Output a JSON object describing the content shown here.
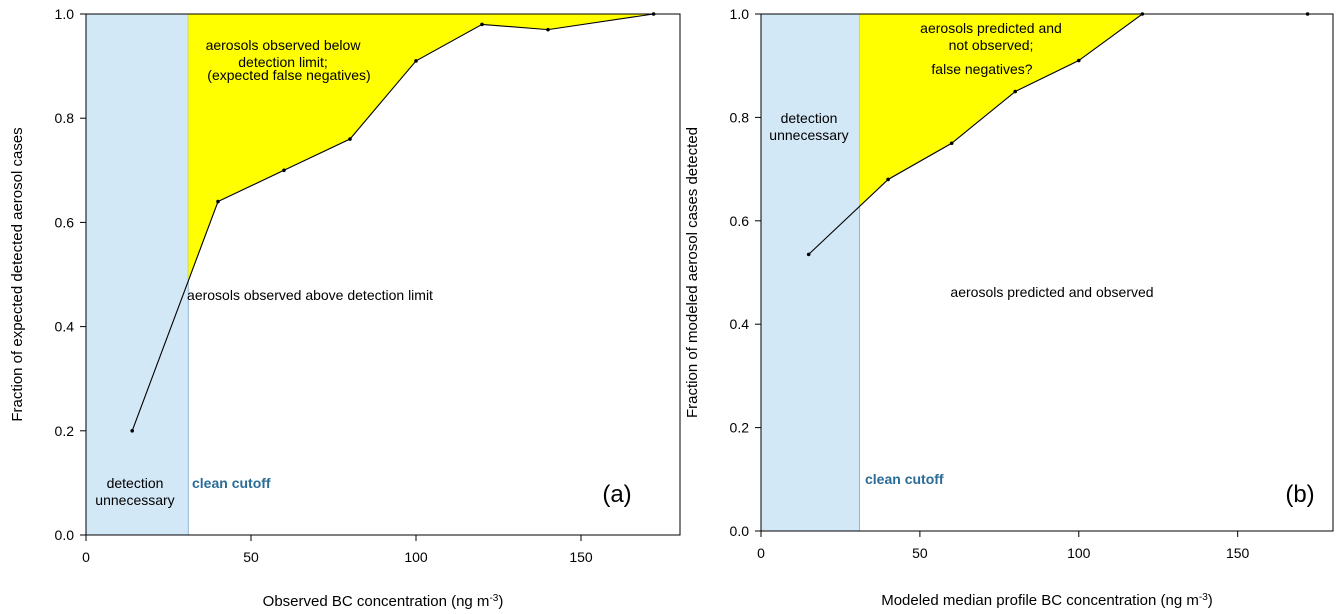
{
  "chart_data": [
    {
      "type": "line",
      "xlabel": "Observed BC concentration (ng m",
      "xlabel_sup": "-3",
      "xlabel_end": ")",
      "ylabel": "Fraction of expected detected aerosol cases",
      "xlim": [
        0,
        180
      ],
      "ylim": [
        0,
        1
      ],
      "xticks": [
        0,
        50,
        100,
        150
      ],
      "yticks": [
        0.0,
        0.2,
        0.4,
        0.6,
        0.8,
        1.0
      ],
      "xtick_labels": [
        "0",
        "50",
        "100",
        "150"
      ],
      "ytick_labels": [
        "0.0",
        "0.2",
        "0.4",
        "0.6",
        "0.8",
        "1.0"
      ],
      "clean_cutoff_x": 31,
      "x": [
        14,
        40,
        60,
        80,
        100,
        120,
        140,
        172
      ],
      "y": [
        0.2,
        0.64,
        0.7,
        0.76,
        0.91,
        0.98,
        0.97,
        1.0
      ],
      "panel_label": "(a)",
      "clean_cutoff_label": "clean cutoff",
      "shaded_region_label_lines": [
        "detection",
        "unnecessary"
      ],
      "upper_region_label_lines": [
        "aerosols observed below",
        "detection limit;",
        "(expected false negatives)"
      ],
      "lower_region_label": "aerosols observed above detection limit",
      "colors": {
        "shade": "#d3e8f7",
        "highlight": "#ffff00",
        "cutoff_text": "#2b6c97"
      }
    },
    {
      "type": "line",
      "xlabel": "Modeled median profile BC concentration (ng m",
      "xlabel_sup": "-3",
      "xlabel_end": ")",
      "ylabel": "Fraction of modeled aerosol cases detected",
      "xlim": [
        0,
        180
      ],
      "ylim": [
        0,
        1
      ],
      "xticks": [
        0,
        50,
        100,
        150
      ],
      "yticks": [
        0.0,
        0.2,
        0.4,
        0.6,
        0.8,
        1.0
      ],
      "xtick_labels": [
        "0",
        "50",
        "100",
        "150"
      ],
      "ytick_labels": [
        "0.0",
        "0.2",
        "0.4",
        "0.6",
        "0.8",
        "1.0"
      ],
      "clean_cutoff_x": 31,
      "x": [
        15,
        40,
        60,
        80,
        100,
        120,
        172
      ],
      "y": [
        0.535,
        0.68,
        0.75,
        0.85,
        0.91,
        1.0,
        1.0
      ],
      "panel_label": "(b)",
      "clean_cutoff_label": "clean cutoff",
      "shaded_region_label_lines": [
        "detection",
        "unnecessary"
      ],
      "upper_region_label_lines": [
        "aerosols predicted and",
        "not observed;",
        "false negatives?"
      ],
      "lower_region_label": "aerosols predicted and observed",
      "colors": {
        "shade": "#d3e8f7",
        "highlight": "#ffff00",
        "cutoff_text": "#2b6c97"
      }
    }
  ]
}
